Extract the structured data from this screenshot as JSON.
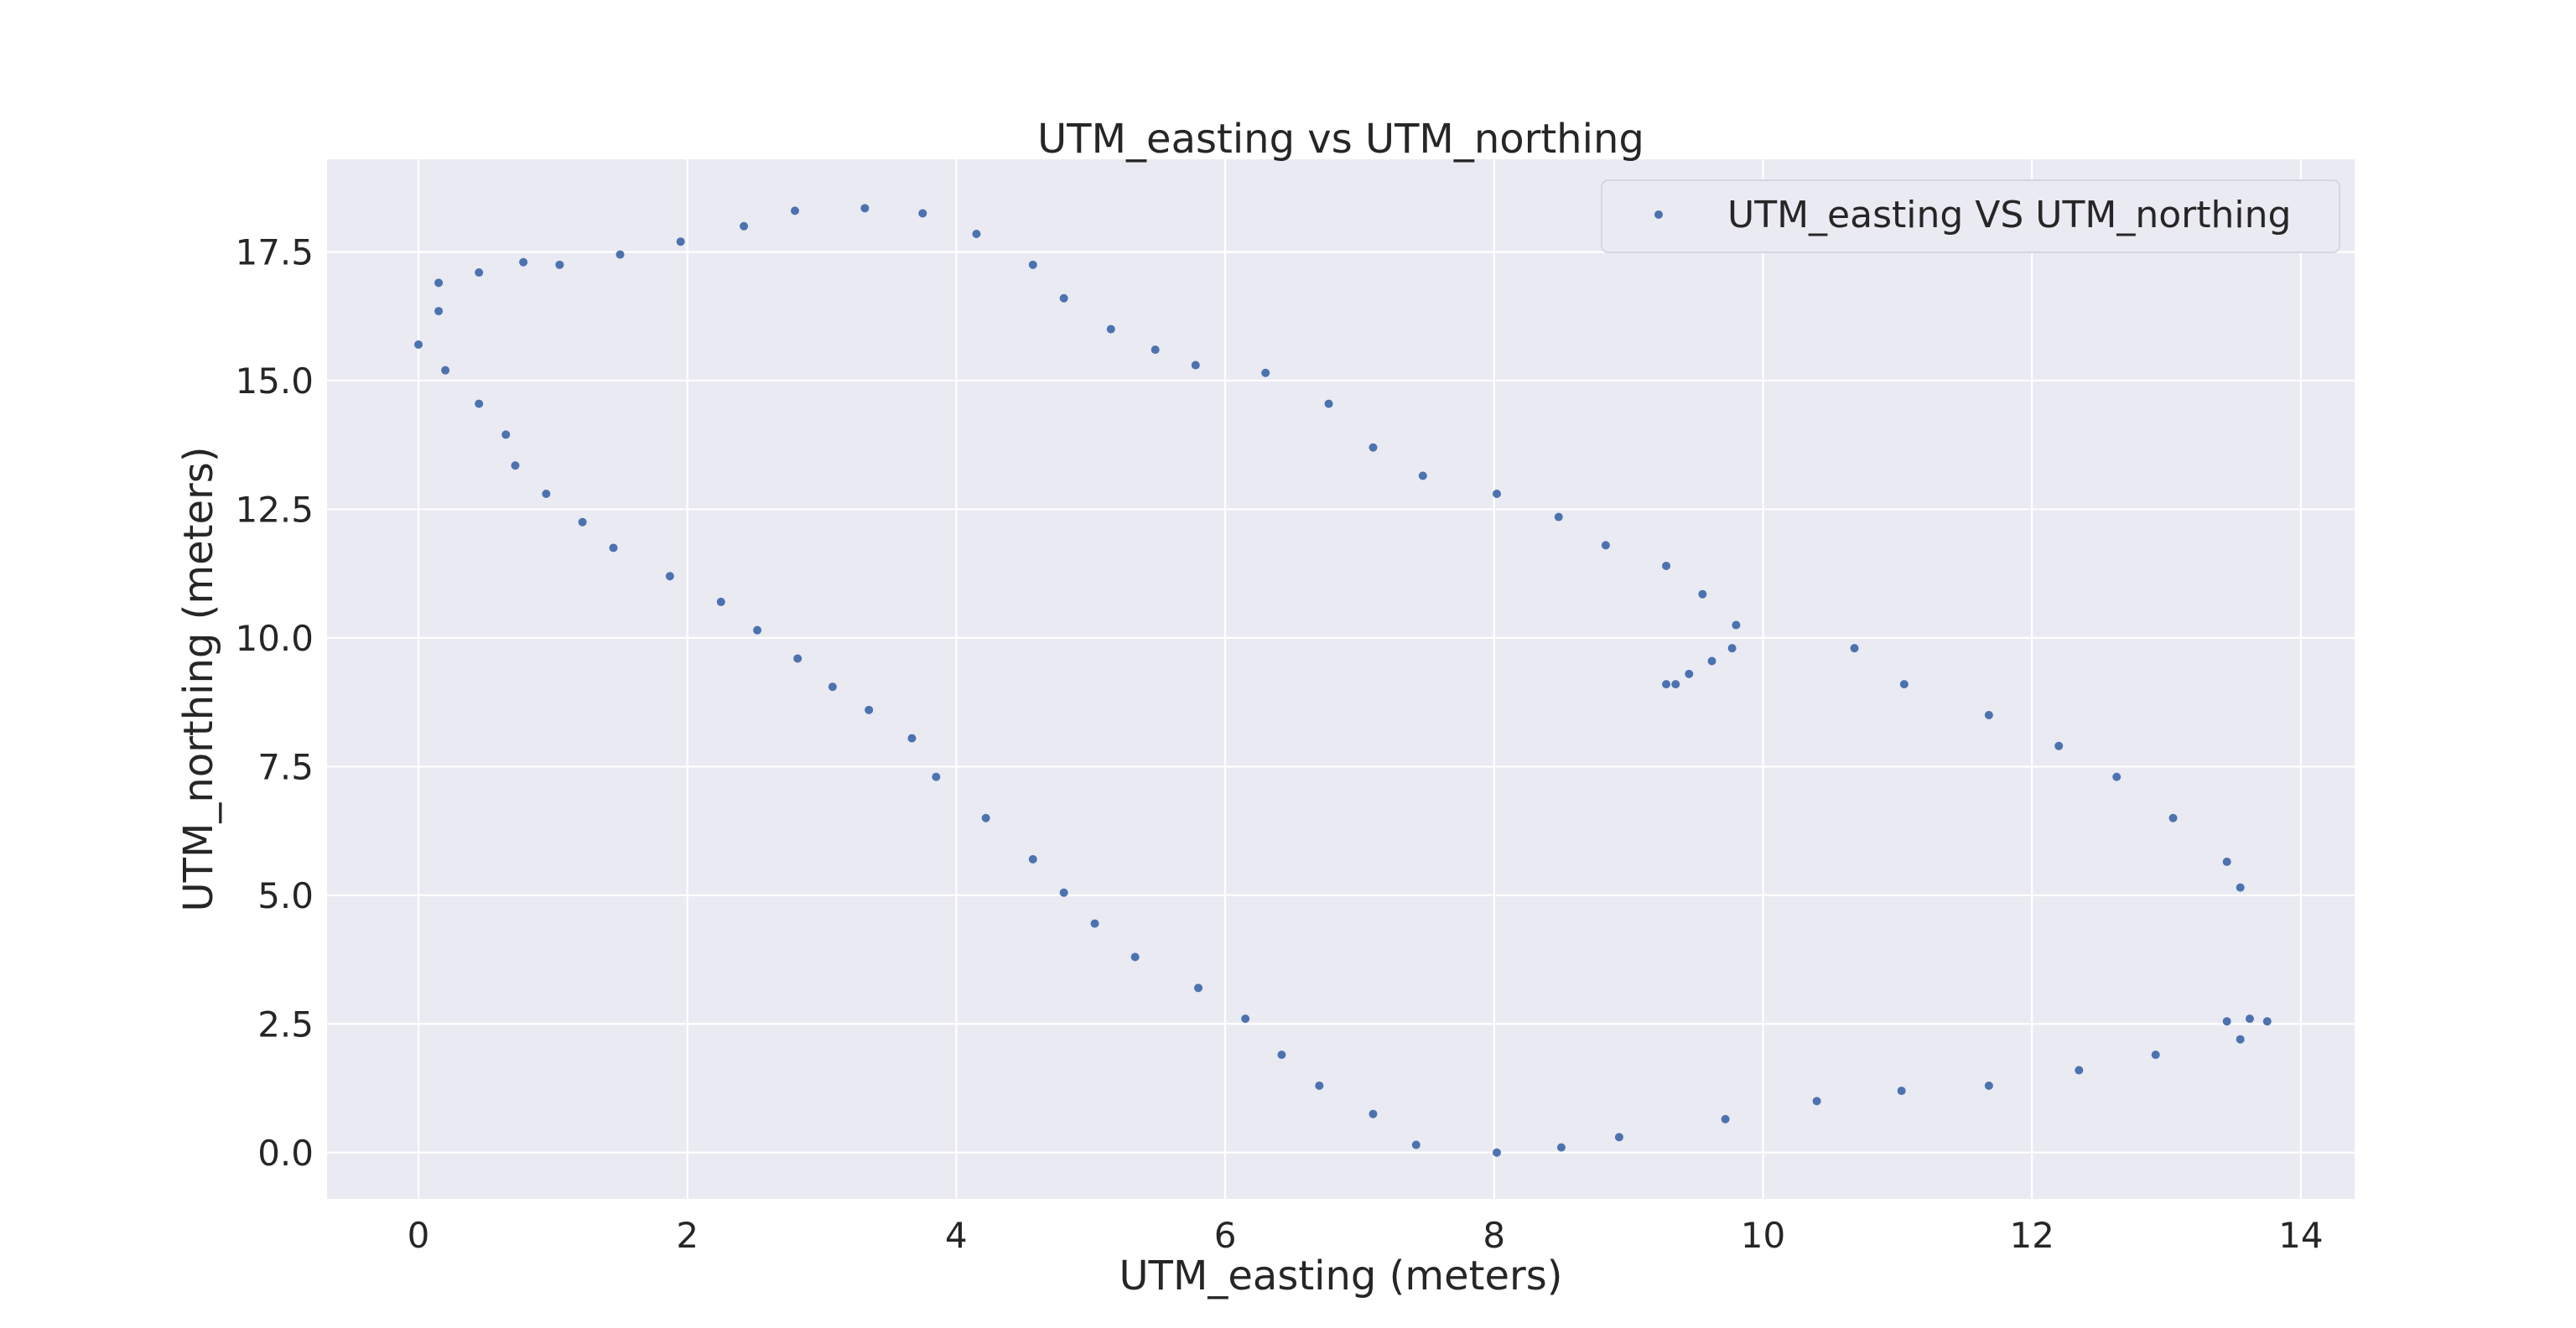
{
  "chart_data": {
    "type": "scatter",
    "title": "UTM_easting vs UTM_northing",
    "xlabel": "UTM_easting (meters)",
    "ylabel": "UTM_northing (meters)",
    "xlim": [
      -0.68,
      14.4
    ],
    "ylim": [
      -0.9,
      19.3
    ],
    "xticks": [
      0,
      2,
      4,
      6,
      8,
      10,
      12,
      14
    ],
    "xtick_labels": [
      "0",
      "2",
      "4",
      "6",
      "8",
      "10",
      "12",
      "14"
    ],
    "yticks": [
      0.0,
      2.5,
      5.0,
      7.5,
      10.0,
      12.5,
      15.0,
      17.5
    ],
    "ytick_labels": [
      "0.0",
      "2.5",
      "5.0",
      "7.5",
      "10.0",
      "12.5",
      "15.0",
      "17.5"
    ],
    "grid": true,
    "legend_position": "top-right",
    "colors": {
      "series": "#4c72b0",
      "plot_background": "#eaeaf2",
      "grid": "#ffffff",
      "text": "#262626"
    },
    "series": [
      {
        "name": "UTM_easting VS UTM_northing",
        "points": [
          [
            0.0,
            15.7
          ],
          [
            0.15,
            16.35
          ],
          [
            0.15,
            16.9
          ],
          [
            0.2,
            15.2
          ],
          [
            0.45,
            17.1
          ],
          [
            0.45,
            14.55
          ],
          [
            0.65,
            13.95
          ],
          [
            0.72,
            13.35
          ],
          [
            0.78,
            17.3
          ],
          [
            0.95,
            12.8
          ],
          [
            1.05,
            17.25
          ],
          [
            1.22,
            12.25
          ],
          [
            1.45,
            11.75
          ],
          [
            1.5,
            17.45
          ],
          [
            1.87,
            11.2
          ],
          [
            1.95,
            17.7
          ],
          [
            2.25,
            10.7
          ],
          [
            2.42,
            18.0
          ],
          [
            2.52,
            10.15
          ],
          [
            2.8,
            18.3
          ],
          [
            2.82,
            9.6
          ],
          [
            3.08,
            9.05
          ],
          [
            3.32,
            18.35
          ],
          [
            3.35,
            8.6
          ],
          [
            3.67,
            8.05
          ],
          [
            3.75,
            18.25
          ],
          [
            3.85,
            7.3
          ],
          [
            4.15,
            17.85
          ],
          [
            4.22,
            6.5
          ],
          [
            4.57,
            17.25
          ],
          [
            4.57,
            5.7
          ],
          [
            4.8,
            16.6
          ],
          [
            4.8,
            5.05
          ],
          [
            5.03,
            4.45
          ],
          [
            5.15,
            16.0
          ],
          [
            5.33,
            3.8
          ],
          [
            5.48,
            15.6
          ],
          [
            5.78,
            15.3
          ],
          [
            5.8,
            3.2
          ],
          [
            6.15,
            2.6
          ],
          [
            6.3,
            15.15
          ],
          [
            6.42,
            1.9
          ],
          [
            6.7,
            1.3
          ],
          [
            6.77,
            14.55
          ],
          [
            7.1,
            13.7
          ],
          [
            7.1,
            0.75
          ],
          [
            7.42,
            0.15
          ],
          [
            7.47,
            13.15
          ],
          [
            8.02,
            12.8
          ],
          [
            8.02,
            0.0
          ],
          [
            8.48,
            12.35
          ],
          [
            8.5,
            0.1
          ],
          [
            8.83,
            11.8
          ],
          [
            8.93,
            0.3
          ],
          [
            9.28,
            11.4
          ],
          [
            9.28,
            9.1
          ],
          [
            9.35,
            9.1
          ],
          [
            9.45,
            9.3
          ],
          [
            9.55,
            10.85
          ],
          [
            9.62,
            9.55
          ],
          [
            9.77,
            9.8
          ],
          [
            9.8,
            10.25
          ],
          [
            9.72,
            0.65
          ],
          [
            10.4,
            1.0
          ],
          [
            10.68,
            9.8
          ],
          [
            11.05,
            9.1
          ],
          [
            11.03,
            1.2
          ],
          [
            11.68,
            8.5
          ],
          [
            11.68,
            1.3
          ],
          [
            12.2,
            7.9
          ],
          [
            12.35,
            1.6
          ],
          [
            12.63,
            7.3
          ],
          [
            12.92,
            1.9
          ],
          [
            13.05,
            6.5
          ],
          [
            13.45,
            5.65
          ],
          [
            13.45,
            2.55
          ],
          [
            13.55,
            5.15
          ],
          [
            13.55,
            2.2
          ],
          [
            13.62,
            2.6
          ],
          [
            13.75,
            2.55
          ]
        ]
      }
    ]
  }
}
